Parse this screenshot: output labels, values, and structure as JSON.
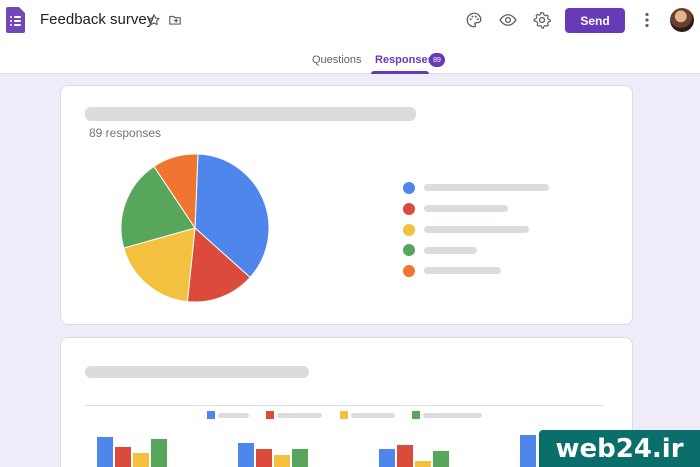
{
  "header": {
    "title": "Feedback survey",
    "send_label": "Send",
    "icons": [
      "forms-logo-icon",
      "star-icon",
      "move-to-folder-icon",
      "palette-icon",
      "preview-eye-icon",
      "settings-gear-icon",
      "more-vert-icon",
      "avatar"
    ]
  },
  "tabs": [
    {
      "label": "Questions",
      "active": false
    },
    {
      "label": "Responses",
      "active": true,
      "count": "89"
    }
  ],
  "summary_card": {
    "responses_text": "89 responses",
    "chart_data": {
      "type": "pie",
      "slices": [
        {
          "color": "#4e86ec",
          "value": 36
        },
        {
          "color": "#db4a3b",
          "value": 15
        },
        {
          "color": "#f3c03f",
          "value": 19
        },
        {
          "color": "#58a55c",
          "value": 20
        },
        {
          "color": "#ef7530",
          "value": 10
        }
      ]
    }
  },
  "bar_card": {
    "chart_data": {
      "type": "bar",
      "series_colors": [
        "#4e86ec",
        "#db4a3b",
        "#f3c03f",
        "#58a55c"
      ],
      "groups": [
        [
          30,
          20,
          14,
          28
        ],
        [
          24,
          18,
          12,
          18
        ],
        [
          18,
          22,
          6,
          16
        ],
        [
          32,
          0,
          0,
          0
        ]
      ]
    }
  },
  "watermark": "web24.ir",
  "colors": {
    "accent": "#673ab7",
    "background": "#f0ebf8"
  }
}
